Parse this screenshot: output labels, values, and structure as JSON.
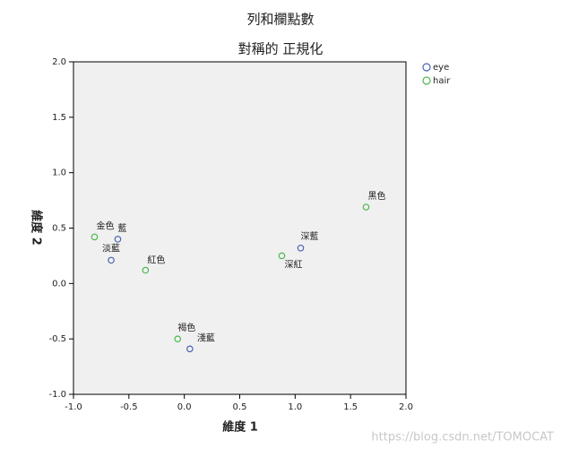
{
  "chart_data": {
    "type": "scatter",
    "title": "列和欄點數",
    "subtitle": "對稱的 正規化",
    "x_label": "維度 1",
    "y_label": "維度 2",
    "xlim": [
      -1,
      2
    ],
    "ylim": [
      -1,
      2
    ],
    "xticks": [
      {
        "value": -1,
        "label": "-1.0"
      },
      {
        "value": -0.5,
        "label": "-0.5"
      },
      {
        "value": 0,
        "label": "0.0"
      },
      {
        "value": 0.5,
        "label": "0.5"
      },
      {
        "value": 1,
        "label": "1.0"
      },
      {
        "value": 1.5,
        "label": "1.5"
      },
      {
        "value": 2,
        "label": "2.0"
      }
    ],
    "yticks": [
      {
        "value": -1,
        "label": "-1.0"
      },
      {
        "value": -0.5,
        "label": "-0.5"
      },
      {
        "value": 0,
        "label": "0.0"
      },
      {
        "value": 0.5,
        "label": "0.5"
      },
      {
        "value": 1,
        "label": "1.0"
      },
      {
        "value": 1.5,
        "label": "1.5"
      },
      {
        "value": 2,
        "label": "2.0"
      }
    ],
    "legend": "top-right outside",
    "series": [
      {
        "name": "eye",
        "color": "#4a64b4",
        "x": [
          -0.6,
          -0.66,
          1.05,
          0.05
        ],
        "values": [
          0.4,
          0.21,
          0.32,
          -0.59
        ],
        "point_labels": [
          "藍",
          "淡藍",
          "深藍",
          "淺藍"
        ]
      },
      {
        "name": "hair",
        "color": "#4cb84c",
        "x": [
          -0.81,
          -0.35,
          -0.06,
          0.88,
          1.64
        ],
        "values": [
          0.42,
          0.12,
          -0.5,
          0.25,
          0.69
        ],
        "point_labels": [
          "金色",
          "紅色",
          "褐色",
          "深紅",
          "黑色"
        ]
      }
    ],
    "watermark": "https://blog.csdn.net/TOMOCAT"
  }
}
